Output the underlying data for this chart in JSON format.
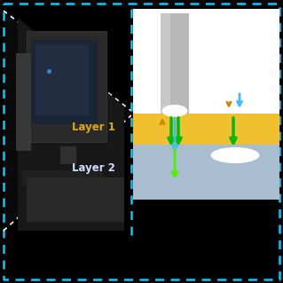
{
  "bg_color": "#000000",
  "cyan_dash": "#00ccff",
  "white_dash": "#ffffff",
  "fig_width": 3.19,
  "fig_height": 3.19,
  "dpi": 100,
  "layer1_color": "#f0c030",
  "layer2_color": "#a8bdd0",
  "layer1_label": "Layer 1",
  "layer2_label": "Layer 2",
  "layer1_label_color": "#ddaa00",
  "layer2_label_color": "#ccddff",
  "arrow_green_dark": "#00bb00",
  "arrow_green_light": "#55ee00",
  "arrow_blue": "#44bbff",
  "arrow_gold": "#cc8800",
  "probe_gray": "#b8b8b8",
  "probe_light": "#d8d8d8",
  "probe_tip_white": "#ffffff"
}
